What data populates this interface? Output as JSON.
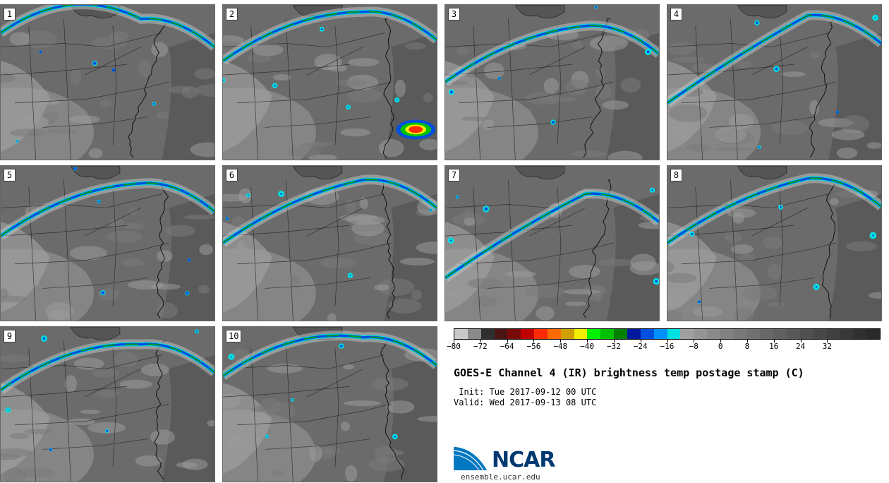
{
  "panels": [
    {
      "label": "1"
    },
    {
      "label": "2"
    },
    {
      "label": "3"
    },
    {
      "label": "4"
    },
    {
      "label": "5"
    },
    {
      "label": "6"
    },
    {
      "label": "7"
    },
    {
      "label": "8"
    },
    {
      "label": "9"
    },
    {
      "label": "10"
    }
  ],
  "colorbar": {
    "colors": [
      "#c8c8c8",
      "#8a8a8a",
      "#2e2e2e",
      "#4a1414",
      "#7a0a0a",
      "#c00000",
      "#ff2a00",
      "#ff6a00",
      "#d0a000",
      "#f0f000",
      "#00f000",
      "#00c000",
      "#008000",
      "#0018a0",
      "#0050e0",
      "#0090ff",
      "#00e0e0",
      "#a0a0a0",
      "#959595",
      "#8a8a8a",
      "#808080",
      "#787878",
      "#707070",
      "#686868",
      "#606060",
      "#585858",
      "#505050",
      "#484848",
      "#404040",
      "#383838",
      "#303030",
      "#2a2a2a"
    ],
    "tick_labels": [
      "−80",
      "−72",
      "−64",
      "−56",
      "−48",
      "−40",
      "−32",
      "−24",
      "−16",
      "−8",
      "0",
      "8",
      "16",
      "24",
      "32"
    ],
    "range": [
      -80,
      48
    ]
  },
  "title": "GOES-E Channel 4 (IR) brightness temp postage stamp (C)",
  "init": " Init: Tue 2017-09-12 00 UTC",
  "valid": "Valid: Wed 2017-09-13 08 UTC",
  "logo_text": "NCAR",
  "site": "ensemble.ucar.edu"
}
